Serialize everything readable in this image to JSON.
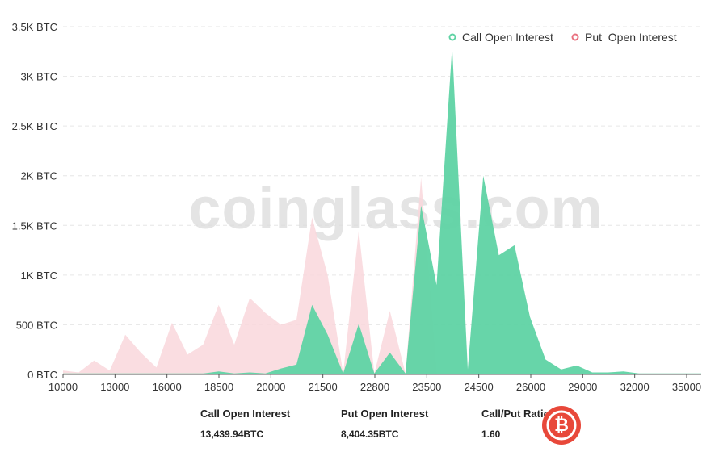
{
  "chart_data": {
    "type": "area",
    "title": "",
    "xlabel": "",
    "ylabel": "",
    "ylim": [
      0,
      3500
    ],
    "yticks": [
      0,
      500,
      1000,
      1500,
      2000,
      2500,
      3000,
      3500
    ],
    "ytick_labels": [
      "0 BTC",
      "500 BTC",
      "1K BTC",
      "1.5K BTC",
      "2K BTC",
      "2.5K BTC",
      "3K BTC",
      "3.5K BTC"
    ],
    "xtick_labels": [
      "10000",
      "13000",
      "16000",
      "18500",
      "20000",
      "21500",
      "22800",
      "23500",
      "24500",
      "26000",
      "29000",
      "32000",
      "35000"
    ],
    "x": [
      "10000",
      "11000",
      "12000",
      "13000",
      "14000",
      "15000",
      "16000",
      "17000",
      "18000",
      "18500",
      "19000",
      "19500",
      "20000",
      "20500",
      "21000",
      "21500",
      "22000",
      "22500",
      "22800",
      "23000",
      "23200",
      "23500",
      "23800",
      "24000",
      "24300",
      "24500",
      "24800",
      "25000",
      "25500",
      "26000",
      "26500",
      "27000",
      "27500",
      "28000",
      "29000",
      "30000",
      "31000",
      "32000",
      "33000",
      "34000",
      "35000",
      "36000"
    ],
    "series": [
      {
        "name": "Call Open Interest",
        "color": "#5fd3a4",
        "values": [
          10,
          10,
          10,
          10,
          10,
          10,
          10,
          10,
          10,
          10,
          30,
          10,
          20,
          10,
          60,
          100,
          700,
          400,
          10,
          510,
          10,
          220,
          10,
          1700,
          900,
          3300,
          50,
          2000,
          1200,
          1300,
          580,
          150,
          50,
          90,
          20,
          20,
          30,
          10,
          10,
          10,
          10,
          10
        ]
      },
      {
        "name": "Put  Open Interest",
        "color": "#f9d7dc",
        "values": [
          40,
          20,
          140,
          40,
          400,
          220,
          70,
          520,
          200,
          300,
          700,
          300,
          770,
          620,
          500,
          550,
          1580,
          1000,
          10,
          1450,
          10,
          640,
          10,
          1980,
          10,
          10,
          10,
          10,
          10,
          10,
          10,
          10,
          10,
          10,
          10,
          10,
          10,
          10,
          10,
          10,
          10,
          10
        ]
      }
    ],
    "legend": [
      "Call Open Interest",
      "Put  Open Interest"
    ],
    "legend_position": "top-right",
    "watermark": "coinglass.com"
  },
  "stats": [
    {
      "label": "Call Open Interest",
      "value": "13,439.94BTC",
      "color": "#5fd3a4"
    },
    {
      "label": "Put Open Interest",
      "value": "8,404.35BTC",
      "color": "#e9707e"
    },
    {
      "label": "Call/Put Ratio",
      "value": "1.60",
      "color": "#5fd3a4"
    }
  ],
  "badge": {
    "icon": "bitcoin-icon",
    "color": "#e8483a"
  }
}
